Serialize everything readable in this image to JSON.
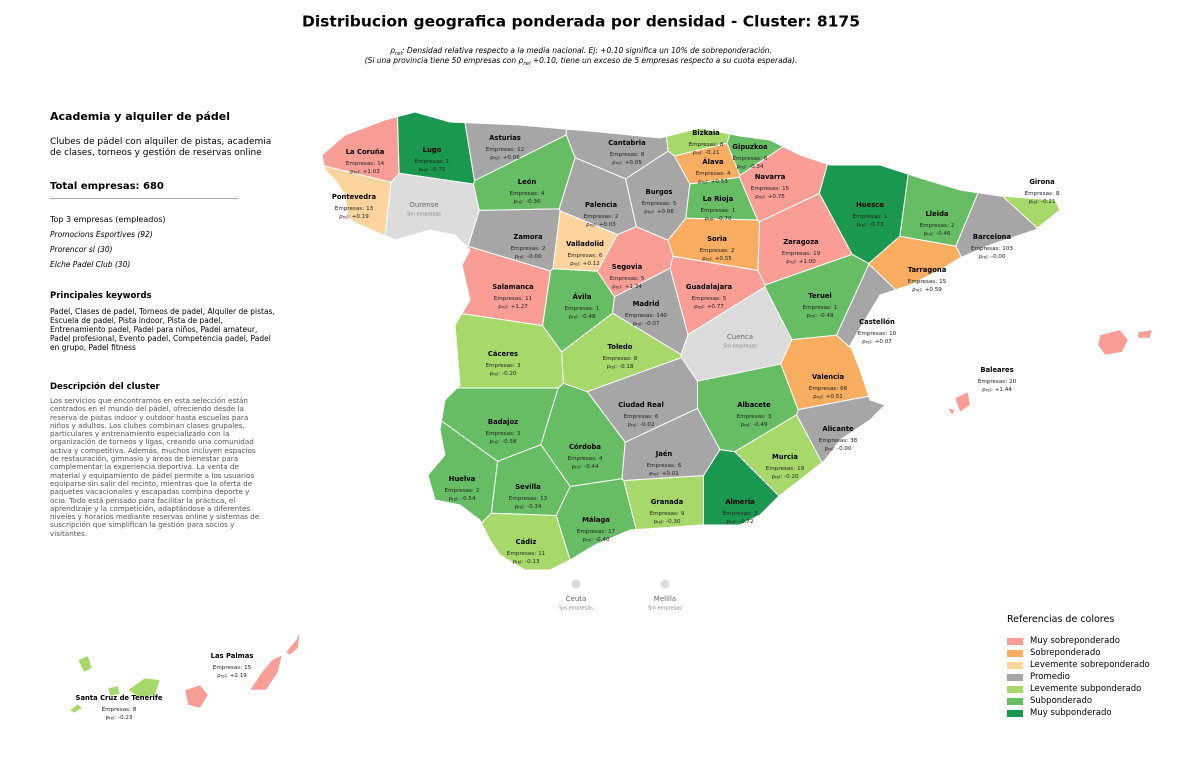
{
  "title": "Distribucion geografica ponderada por densidad - Cluster: 8175",
  "subtitle": {
    "rho_symbol": "ρ",
    "rho_subscript": "rel",
    "line1": ": Densidad relativa respecto a la media nacional. Ej: +0.10 significa un 10% de sobreponderación.",
    "line2_a": "(Si una provincia tiene 50 empresas con ",
    "line2_b": " +0.10, tiene un exceso de 5 empresas respecto a su cuota esperada)."
  },
  "panel": {
    "heading": "Academia y alquiler de pádel",
    "summary": "Clubes de pádel con alquiler de pistas, academia de clases, torneos y gestión de reservas online",
    "total_label": "Total empresas:",
    "total": 680,
    "top_heading": "Top 3 empresas (empleados)",
    "top": [
      "Promocions Esportives (92)",
      "Prorencor sl (30)",
      "Elche Padel Club (30)"
    ],
    "keywords_heading": "Principales keywords",
    "keywords": "Padel, Clases de padel, Torneos de padel, Alquiler de pistas, Escuela de padel, Pista indoor, Pista de padel, Entrenamiento padel, Padel para niños, Padel amateur, Padel profesional, Evento padel, Competencia padel, Padel en grupo, Padel fitness",
    "description_heading": "Descripción del cluster",
    "description": "Los servicios que encontramos en esta selección están centrados en el mundo del pádel, ofreciendo desde la reserva de pistas indoor y outdoor hasta escuelas para niños y adultos. Los clubes combinan clases grupales, particulares y entrenamiento especializado con la organización de torneos y ligas, creando una comunidad activa y competitiva. Además, muchos incluyen espacios de restauración, gimnasio y áreas de bienestar para complementar la experiencia deportiva. La venta de material y equipamiento de pádel permite a los usuarios equiparse sin salir del recinto, mientras que la oferta de paquetes vacacionales y escapadas combina deporte y ocio. Todo está pensado para facilitar la práctica, el aprendizaje y la competición, adaptándose a diferentes niveles y horarios mediante reservas online y sistemas de suscripción que simplifican la gestión para socios y visitantes."
  },
  "legend": {
    "title": "Referencias de colores",
    "items": [
      {
        "label": "Muy sobreponderado",
        "color": "#f99d95"
      },
      {
        "label": "Sobreponderado",
        "color": "#f9ad60"
      },
      {
        "label": "Levemente sobreponderado",
        "color": "#fdd49e"
      },
      {
        "label": "Promedio",
        "color": "#a6a6a6"
      },
      {
        "label": "Levemente subponderado",
        "color": "#a6d96a"
      },
      {
        "label": "Subponderado",
        "color": "#66bd63"
      },
      {
        "label": "Muy subponderado",
        "color": "#1a9850"
      }
    ]
  },
  "no_data_color": "#dcdcdc",
  "no_data_label": "Sin empresas",
  "value_labels": {
    "empresas": "Empresas:",
    "rho_symbol": "ρ",
    "rho_subscript": "rel",
    "rho_colon": ":"
  },
  "provinces": [
    {
      "name": "La Coruña",
      "empresas": 14,
      "rho": "+1.03",
      "category": 0
    },
    {
      "name": "Lugo",
      "empresas": 1,
      "rho": "-0.75",
      "category": 6
    },
    {
      "name": "Asturias",
      "empresas": 12,
      "rho": "+0.06",
      "category": 3
    },
    {
      "name": "Cantabria",
      "empresas": 8,
      "rho": "+0.05",
      "category": 3
    },
    {
      "name": "Bizkaia",
      "empresas": 8,
      "rho": "-0.21",
      "category": 4
    },
    {
      "name": "Gipuzkoa",
      "empresas": 6,
      "rho": "-0.34",
      "category": 5
    },
    {
      "name": "Álava",
      "empresas": 4,
      "rho": "+0.53",
      "category": 1
    },
    {
      "name": "Navarra",
      "empresas": 15,
      "rho": "+0.75",
      "category": 0
    },
    {
      "name": "Pontevedra",
      "empresas": 13,
      "rho": "+0.19",
      "category": 2
    },
    {
      "name": "Ourense",
      "category": null
    },
    {
      "name": "León",
      "empresas": 4,
      "rho": "-0.36",
      "category": 5
    },
    {
      "name": "Palencia",
      "empresas": 2,
      "rho": "+0.03",
      "category": 3
    },
    {
      "name": "Burgos",
      "empresas": 5,
      "rho": "+0.06",
      "category": 3
    },
    {
      "name": "La Rioja",
      "empresas": 1,
      "rho": "-0.70",
      "category": 5
    },
    {
      "name": "Huesca",
      "empresas": 1,
      "rho": "-0.73",
      "category": 6
    },
    {
      "name": "Lleida",
      "empresas": 2,
      "rho": "-0.46",
      "category": 5
    },
    {
      "name": "Girona",
      "empresas": 8,
      "rho": "-0.21",
      "category": 4
    },
    {
      "name": "Barcelona",
      "empresas": 103,
      "rho": "-0.00",
      "category": 3
    },
    {
      "name": "Zamora",
      "empresas": 2,
      "rho": "-0.00",
      "category": 3
    },
    {
      "name": "Valladolid",
      "empresas": 6,
      "rho": "+0.12",
      "category": 2
    },
    {
      "name": "Soria",
      "empresas": 2,
      "rho": "+0.55",
      "category": 1
    },
    {
      "name": "Zaragoza",
      "empresas": 19,
      "rho": "+1.00",
      "category": 0
    },
    {
      "name": "Tarragona",
      "empresas": 15,
      "rho": "+0.59",
      "category": 1
    },
    {
      "name": "Segovia",
      "empresas": 5,
      "rho": "+1.34",
      "category": 0
    },
    {
      "name": "Salamanca",
      "empresas": 11,
      "rho": "+1.27",
      "category": 0
    },
    {
      "name": "Ávila",
      "empresas": 1,
      "rho": "-0.48",
      "category": 5
    },
    {
      "name": "Madrid",
      "empresas": 140,
      "rho": "-0.07",
      "category": 3
    },
    {
      "name": "Guadalajara",
      "empresas": 5,
      "rho": "+0.77",
      "category": 0
    },
    {
      "name": "Teruel",
      "empresas": 1,
      "rho": "-0.49",
      "category": 5
    },
    {
      "name": "Castellón",
      "empresas": 10,
      "rho": "+0.07",
      "category": 3
    },
    {
      "name": "Cuenca",
      "category": null
    },
    {
      "name": "Cáceres",
      "empresas": 3,
      "rho": "-0.20",
      "category": 4
    },
    {
      "name": "Toledo",
      "empresas": 8,
      "rho": "-0.18",
      "category": 4
    },
    {
      "name": "Valencia",
      "empresas": 68,
      "rho": "+0.51",
      "category": 1
    },
    {
      "name": "Ciudad Real",
      "empresas": 6,
      "rho": "-0.02",
      "category": 3
    },
    {
      "name": "Albacete",
      "empresas": 3,
      "rho": "-0.49",
      "category": 5
    },
    {
      "name": "Badajoz",
      "empresas": 3,
      "rho": "-0.58",
      "category": 5
    },
    {
      "name": "Alicante",
      "empresas": 38,
      "rho": "-0.00",
      "category": 3
    },
    {
      "name": "Córdoba",
      "empresas": 4,
      "rho": "-0.44",
      "category": 5
    },
    {
      "name": "Jaén",
      "empresas": 6,
      "rho": "+0.01",
      "category": 3
    },
    {
      "name": "Murcia",
      "empresas": 19,
      "rho": "-0.20",
      "category": 4
    },
    {
      "name": "Huelva",
      "empresas": 2,
      "rho": "-0.54",
      "category": 5
    },
    {
      "name": "Sevilla",
      "empresas": 13,
      "rho": "-0.34",
      "category": 5
    },
    {
      "name": "Granada",
      "empresas": 9,
      "rho": "-0.30",
      "category": 4
    },
    {
      "name": "Almería",
      "empresas": 3,
      "rho": "-0.72",
      "category": 6
    },
    {
      "name": "Málaga",
      "empresas": 17,
      "rho": "-0.40",
      "category": 5
    },
    {
      "name": "Cádiz",
      "empresas": 11,
      "rho": "-0.13",
      "category": 4
    }
  ],
  "islands": [
    {
      "name": "Baleares",
      "empresas": 20,
      "rho": "+1.44",
      "category": 0
    },
    {
      "name": "Las Palmas",
      "empresas": 15,
      "rho": "+2.19",
      "category": 0
    },
    {
      "name": "Santa Cruz de Tenerife",
      "empresas": 8,
      "rho": "-0.23",
      "category": 4
    }
  ],
  "cities": [
    {
      "name": "Ceuta",
      "category": null
    },
    {
      "name": "Melilla",
      "category": null
    }
  ]
}
